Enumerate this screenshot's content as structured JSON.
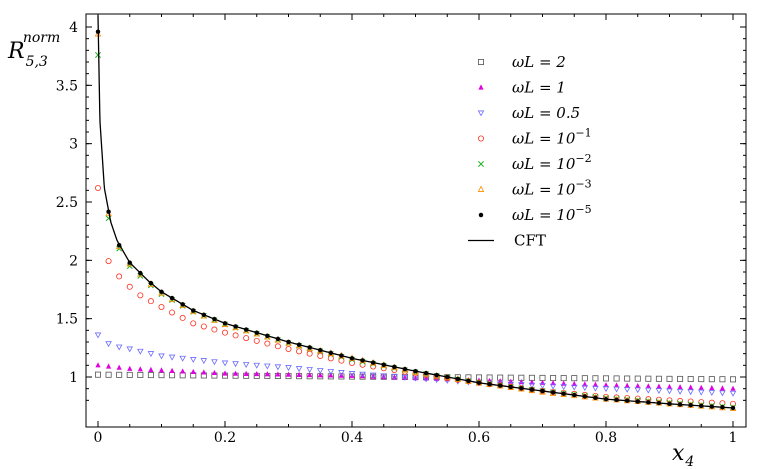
{
  "chart_data": {
    "type": "scatter",
    "title": "",
    "xlabel": "x4",
    "ylabel": "R^norm_5,3",
    "xlim": [
      0,
      1
    ],
    "ylim": [
      0.75,
      4.1
    ],
    "xticks": [
      "0",
      "0.2",
      "0.4",
      "0.6",
      "0.8",
      "1"
    ],
    "yticks": [
      "1",
      "1.5",
      "2",
      "2.5",
      "3",
      "3.5",
      "4"
    ],
    "xtick_values": [
      0,
      0.2,
      0.4,
      0.6,
      0.8,
      1
    ],
    "ytick_values": [
      1,
      1.5,
      2,
      2.5,
      3,
      3.5,
      4
    ],
    "legend_position": "top-right",
    "grid": false,
    "n_points": 61,
    "series": [
      {
        "name": "ωL = 2",
        "label_main": "ωL = 2",
        "label_sup": "",
        "marker": "square-open",
        "color": "#555555",
        "anchors": [
          [
            0,
            1.02
          ],
          [
            0.5,
            1.0
          ],
          [
            1,
            0.98
          ]
        ]
      },
      {
        "name": "ωL = 1",
        "label_main": "ωL = 1",
        "label_sup": "",
        "marker": "triangle-filled",
        "color": "#e000e0",
        "anchors": [
          [
            0,
            1.1
          ],
          [
            0.05,
            1.07
          ],
          [
            0.2,
            1.03
          ],
          [
            0.4,
            1.01
          ],
          [
            0.6,
            0.97
          ],
          [
            0.8,
            0.93
          ],
          [
            1,
            0.9
          ]
        ]
      },
      {
        "name": "ωL = 0.5",
        "label_main": "ωL = 0.5",
        "label_sup": "",
        "marker": "triangle-down-open",
        "color": "#6b6bff",
        "anchors": [
          [
            0,
            1.36
          ],
          [
            0.02,
            1.27
          ],
          [
            0.05,
            1.24
          ],
          [
            0.1,
            1.18
          ],
          [
            0.2,
            1.12
          ],
          [
            0.3,
            1.08
          ],
          [
            0.4,
            1.03
          ],
          [
            0.5,
            0.99
          ],
          [
            0.6,
            0.95
          ],
          [
            0.8,
            0.9
          ],
          [
            1,
            0.86
          ]
        ]
      },
      {
        "name": "ωL = 10^-1",
        "label_main": "ωL = 10",
        "label_sup": "−1",
        "marker": "circle-open",
        "color": "#ff3020",
        "anchors": [
          [
            0,
            2.62
          ],
          [
            0.01,
            2.05
          ],
          [
            0.03,
            1.88
          ],
          [
            0.06,
            1.72
          ],
          [
            0.1,
            1.6
          ],
          [
            0.15,
            1.46
          ],
          [
            0.2,
            1.38
          ],
          [
            0.3,
            1.24
          ],
          [
            0.4,
            1.12
          ],
          [
            0.5,
            1.03
          ],
          [
            0.6,
            0.95
          ],
          [
            0.7,
            0.88
          ],
          [
            0.8,
            0.83
          ],
          [
            0.9,
            0.8
          ],
          [
            1,
            0.77
          ]
        ]
      },
      {
        "name": "ωL = 10^-2",
        "label_main": "ωL = 10",
        "label_sup": "−2",
        "marker": "cross",
        "color": "#20b020",
        "anchors": [
          [
            0,
            3.76
          ],
          [
            0.01,
            2.54
          ],
          [
            0.02,
            2.27
          ],
          [
            0.03,
            2.13
          ],
          [
            0.05,
            1.95
          ],
          [
            0.08,
            1.8
          ],
          [
            0.1,
            1.71
          ],
          [
            0.15,
            1.56
          ],
          [
            0.2,
            1.45
          ],
          [
            0.3,
            1.29
          ],
          [
            0.4,
            1.15
          ],
          [
            0.5,
            1.04
          ],
          [
            0.6,
            0.95
          ],
          [
            0.7,
            0.88
          ],
          [
            0.8,
            0.82
          ],
          [
            0.9,
            0.78
          ],
          [
            1,
            0.74
          ]
        ]
      },
      {
        "name": "ωL = 10^-3",
        "label_main": "ωL = 10",
        "label_sup": "−3",
        "marker": "triangle-open",
        "color": "#ff8c00",
        "anchors": [
          [
            0,
            3.94
          ],
          [
            0.01,
            2.6
          ],
          [
            0.02,
            2.3
          ],
          [
            0.03,
            2.15
          ],
          [
            0.05,
            1.97
          ],
          [
            0.08,
            1.81
          ],
          [
            0.1,
            1.72
          ],
          [
            0.15,
            1.56
          ],
          [
            0.2,
            1.45
          ],
          [
            0.3,
            1.29
          ],
          [
            0.4,
            1.16
          ],
          [
            0.5,
            1.04
          ],
          [
            0.6,
            0.95
          ],
          [
            0.7,
            0.87
          ],
          [
            0.8,
            0.81
          ],
          [
            0.9,
            0.77
          ],
          [
            1,
            0.73
          ]
        ]
      },
      {
        "name": "ωL = 10^-5",
        "label_main": "ωL = 10",
        "label_sup": "−5",
        "marker": "dot",
        "color": "#000000",
        "anchors": [
          [
            0,
            3.96
          ],
          [
            0.01,
            2.61
          ],
          [
            0.02,
            2.32
          ],
          [
            0.03,
            2.16
          ],
          [
            0.05,
            1.98
          ],
          [
            0.08,
            1.82
          ],
          [
            0.1,
            1.73
          ],
          [
            0.15,
            1.57
          ],
          [
            0.2,
            1.46
          ],
          [
            0.3,
            1.3
          ],
          [
            0.4,
            1.16
          ],
          [
            0.5,
            1.05
          ],
          [
            0.6,
            0.95
          ],
          [
            0.7,
            0.88
          ],
          [
            0.8,
            0.81
          ],
          [
            0.9,
            0.77
          ],
          [
            1,
            0.735
          ]
        ]
      }
    ],
    "line_series": {
      "name": "CFT",
      "color": "#000000",
      "anchors": [
        [
          0,
          4.1
        ],
        [
          0.003,
          3.2
        ],
        [
          0.01,
          2.62
        ],
        [
          0.02,
          2.33
        ],
        [
          0.03,
          2.17
        ],
        [
          0.05,
          1.98
        ],
        [
          0.08,
          1.82
        ],
        [
          0.1,
          1.73
        ],
        [
          0.15,
          1.57
        ],
        [
          0.2,
          1.46
        ],
        [
          0.3,
          1.3
        ],
        [
          0.4,
          1.16
        ],
        [
          0.5,
          1.05
        ],
        [
          0.6,
          0.95
        ],
        [
          0.7,
          0.88
        ],
        [
          0.8,
          0.81
        ],
        [
          0.9,
          0.77
        ],
        [
          1,
          0.735
        ]
      ]
    }
  }
}
